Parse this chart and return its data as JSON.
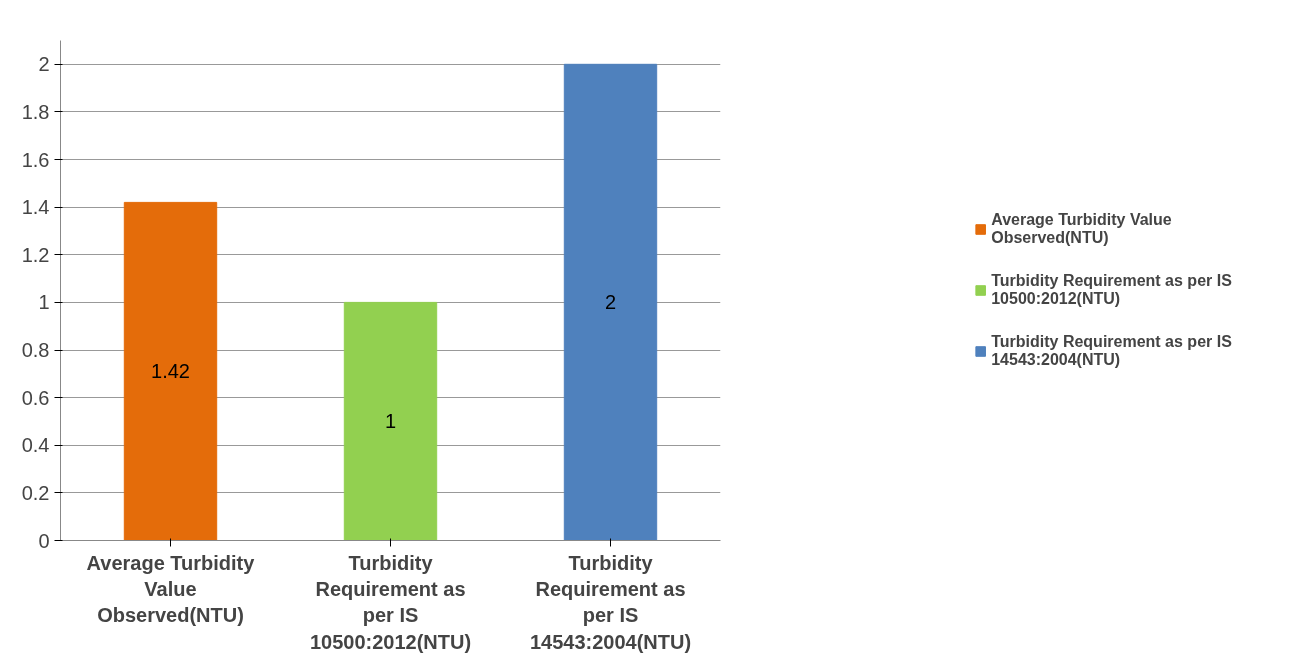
{
  "chart_data": {
    "type": "bar",
    "stacked": true,
    "categories": [
      "Average Turbidity Value Observed(NTU)",
      "Turbidity Requirement as per IS 10500:2012(NTU)",
      "Turbidity Requirement as per IS 14543:2004(NTU)"
    ],
    "series": [
      {
        "name": "Average Turbidity Value Observed(NTU)",
        "color": "#e46c0a",
        "values": [
          1.42,
          null,
          null
        ]
      },
      {
        "name": "Turbidity Requirement as per IS 10500:2012(NTU)",
        "color": "#92d050",
        "values": [
          null,
          1,
          null
        ]
      },
      {
        "name": "Turbidity Requirement as per IS 14543:2004(NTU)",
        "color": "#4f81bd",
        "values": [
          null,
          null,
          2
        ]
      }
    ],
    "ylim": [
      0,
      2.1
    ],
    "yticks": [
      0,
      0.2,
      0.4,
      0.6,
      0.8,
      1,
      1.2,
      1.4,
      1.6,
      1.8,
      2
    ],
    "grid": "y",
    "legend": "right",
    "data_labels": true
  }
}
